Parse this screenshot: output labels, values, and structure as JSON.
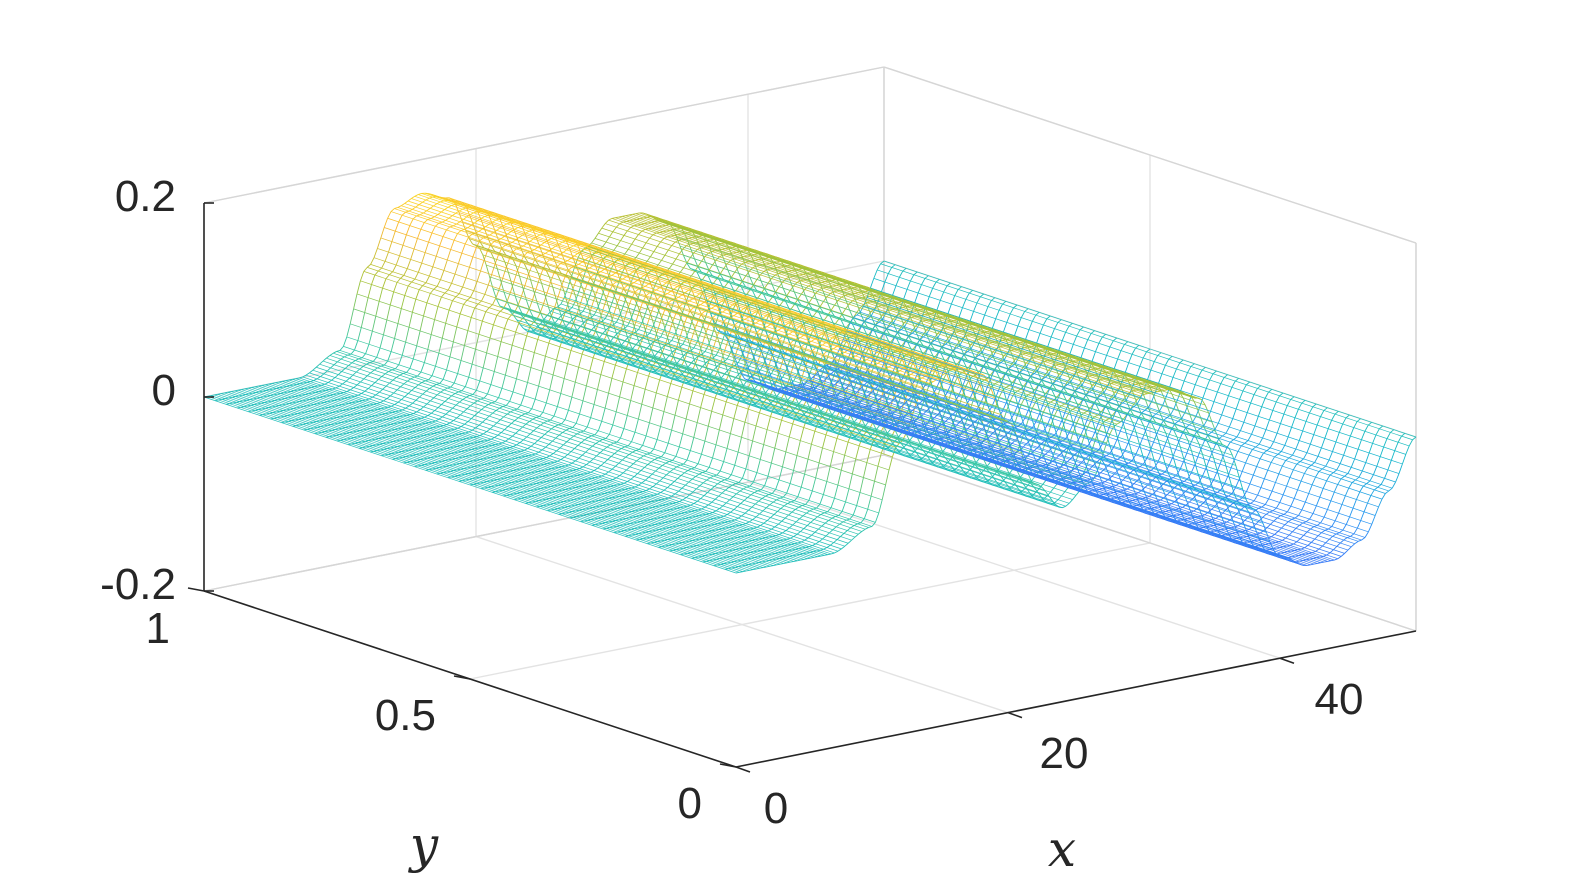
{
  "chart_data": {
    "type": "surface",
    "title": "",
    "xlabel": "x",
    "ylabel": "y",
    "zlabel": "",
    "xlim": [
      0,
      50
    ],
    "ylim": [
      0,
      1
    ],
    "zlim": [
      -0.2,
      0.2
    ],
    "xticks": [
      0,
      20,
      40
    ],
    "yticks": [
      0,
      0.5,
      1
    ],
    "zticks": [
      -0.2,
      0,
      0.2
    ],
    "x_tick_labels": [
      "0",
      "20",
      "40"
    ],
    "y_tick_labels": [
      "0",
      "0.5",
      "1"
    ],
    "z_tick_labels": [
      "-0.2",
      "0",
      "0.2"
    ],
    "grid": true,
    "colormap": "parula",
    "surface": {
      "description_of_profile": "z constant along y; z varies with x",
      "profile_x": [
        0,
        7,
        10,
        12,
        14,
        16,
        18,
        20,
        22,
        24,
        26,
        28,
        30,
        32,
        34,
        36,
        38,
        40,
        42,
        44,
        46,
        48,
        50
      ],
      "profile_z": [
        0,
        0,
        0.02,
        0.1,
        0.155,
        0.165,
        0.155,
        0.1,
        0.03,
        0.0,
        0.02,
        0.075,
        0.1,
        0.1,
        0.085,
        0.03,
        -0.04,
        -0.095,
        -0.11,
        -0.11,
        -0.095,
        -0.05,
        0.0
      ]
    }
  }
}
